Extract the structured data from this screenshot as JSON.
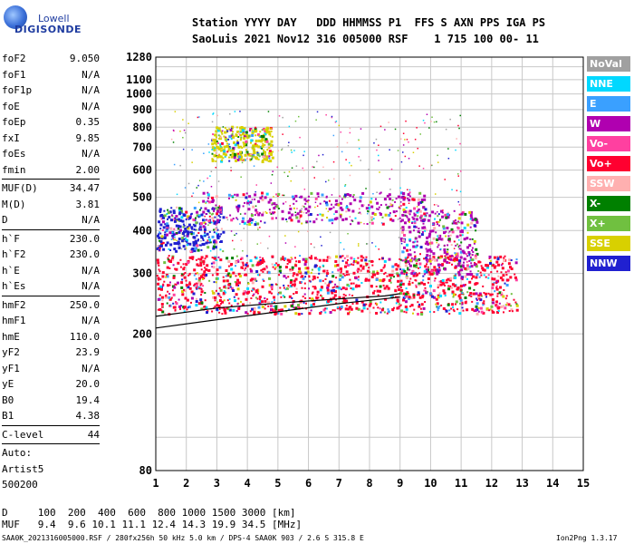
{
  "brand": {
    "line1": "Lowell",
    "line2": "DIGISONDE"
  },
  "header": {
    "row1": "Station YYYY DAY   DDD HHMMSS P1  FFS S AXN PPS IGA PS",
    "row2": "SaoLuis 2021 Nov12 316 005000 RSF    1 715 100 00- 11"
  },
  "params": {
    "group1": [
      {
        "k": "foF2",
        "v": "9.050"
      },
      {
        "k": "foF1",
        "v": "N/A"
      },
      {
        "k": "foF1p",
        "v": "N/A"
      },
      {
        "k": "foE",
        "v": "N/A"
      },
      {
        "k": "foEp",
        "v": "0.35"
      },
      {
        "k": "fxI",
        "v": "9.85"
      },
      {
        "k": "foEs",
        "v": "N/A"
      },
      {
        "k": "fmin",
        "v": "2.00"
      }
    ],
    "group2": [
      {
        "k": "MUF(D)",
        "v": "34.47"
      },
      {
        "k": "M(D)",
        "v": "3.81"
      },
      {
        "k": "D",
        "v": "N/A"
      }
    ],
    "group3": [
      {
        "k": "h`F",
        "v": "230.0"
      },
      {
        "k": "h`F2",
        "v": "230.0"
      },
      {
        "k": "h`E",
        "v": "N/A"
      },
      {
        "k": "h`Es",
        "v": "N/A"
      }
    ],
    "group4": [
      {
        "k": "hmF2",
        "v": "250.0"
      },
      {
        "k": "hmF1",
        "v": "N/A"
      },
      {
        "k": "hmE",
        "v": "110.0"
      },
      {
        "k": "yF2",
        "v": "23.9"
      },
      {
        "k": "yF1",
        "v": "N/A"
      },
      {
        "k": "yE",
        "v": "20.0"
      },
      {
        "k": "B0",
        "v": "19.4"
      },
      {
        "k": "B1",
        "v": "4.38"
      }
    ],
    "group5": [
      {
        "k": "C-level",
        "v": "44"
      }
    ],
    "auto": [
      "Auto:",
      "Artist5",
      "500200"
    ]
  },
  "legend": [
    {
      "label": "NoVal",
      "color": "#a0a0a0"
    },
    {
      "label": "NNE",
      "color": "#00d8ff"
    },
    {
      "label": "E",
      "color": "#3aa0ff"
    },
    {
      "label": "W",
      "color": "#b000b0"
    },
    {
      "label": "Vo-",
      "color": "#ff40a0"
    },
    {
      "label": "Vo+",
      "color": "#ff0030"
    },
    {
      "label": "SSW",
      "color": "#ffb0b0"
    },
    {
      "label": "X-",
      "color": "#008000"
    },
    {
      "label": "X+",
      "color": "#70c040"
    },
    {
      "label": "SSE",
      "color": "#d8d000"
    },
    {
      "label": "NNW",
      "color": "#2020d0"
    }
  ],
  "footer": {
    "d_row": "D     100  200  400  600  800 1000 1500 3000 [km]",
    "muf_row": "MUF   9.4  9.6 10.1 11.1 12.4 14.3 19.9 34.5 [MHz]",
    "source": "SAA0K_2021316005000.RSF / 280fx256h 50 kHz 5.0 km / DPS-4 SAA0K 903 / 2.6 S 315.8 E",
    "version": "Ion2Png 1.3.17"
  },
  "chart_data": {
    "type": "scatter",
    "title": "",
    "xlabel": "",
    "ylabel": "",
    "xlim": [
      1,
      15
    ],
    "ylim": [
      80,
      1280
    ],
    "y_scale": "log",
    "grid": true,
    "x_ticks": [
      "1",
      "2",
      "3",
      "4",
      "5",
      "6",
      "7",
      "8",
      "9",
      "10",
      "11",
      "12",
      "13",
      "14",
      "15"
    ],
    "y_ticks": [
      "80",
      "200",
      "300",
      "400",
      "500",
      "600",
      "700",
      "800",
      "900",
      "1000",
      "1100",
      "1280"
    ],
    "traces": [
      {
        "name": "virtual height trace (upper)",
        "x": [
          1.0,
          3.0,
          5.0,
          7.0,
          8.5,
          9.0
        ],
        "y": [
          225,
          238,
          246,
          253,
          258,
          262
        ]
      },
      {
        "name": "virtual height trace (lower)",
        "x": [
          1.0,
          3.0,
          5.0,
          7.0,
          9.0
        ],
        "y": [
          208,
          220,
          232,
          245,
          256
        ]
      }
    ],
    "echo_bands": [
      {
        "x": [
          1.0,
          12.8
        ],
        "y": [
          230,
          340
        ],
        "color": "#ff0030"
      },
      {
        "x": [
          1.0,
          3.2
        ],
        "y": [
          350,
          470
        ],
        "color": "#2020d0"
      },
      {
        "x": [
          2.5,
          9.8
        ],
        "y": [
          420,
          520
        ],
        "color": "#b000b0"
      },
      {
        "x": [
          9.0,
          11.5
        ],
        "y": [
          300,
          460
        ],
        "color": "#b000b0"
      },
      {
        "x": [
          2.8,
          4.8
        ],
        "y": [
          640,
          810
        ],
        "color": "#d8d000"
      }
    ]
  }
}
